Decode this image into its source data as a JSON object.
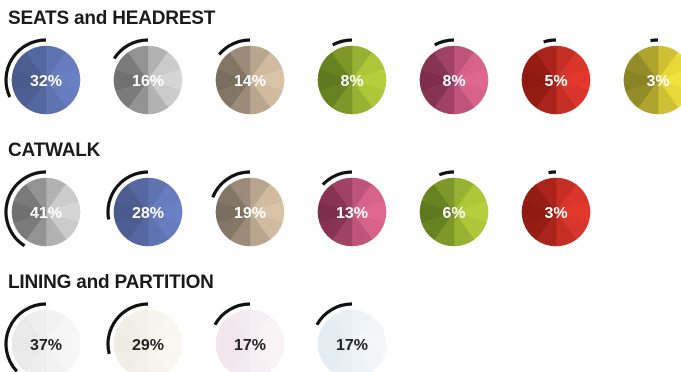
{
  "chart_data": [
    {
      "type": "pie",
      "title": "SEATS and HEADREST",
      "items": [
        {
          "label": "32%",
          "value": 32,
          "colors": [
            "#4a5a8e",
            "#6a80c4"
          ]
        },
        {
          "label": "16%",
          "value": 16,
          "colors": [
            "#707070",
            "#d5d5d5"
          ]
        },
        {
          "label": "14%",
          "value": 14,
          "colors": [
            "#7a6e5e",
            "#d9c3a8"
          ]
        },
        {
          "label": "8%",
          "value": 8,
          "colors": [
            "#5f7a1e",
            "#b5cf3c"
          ]
        },
        {
          "label": "8%",
          "value": 8,
          "colors": [
            "#7e2e4c",
            "#e06890"
          ]
        },
        {
          "label": "5%",
          "value": 5,
          "colors": [
            "#8e1a12",
            "#e2382c"
          ]
        },
        {
          "label": "3%",
          "value": 3,
          "colors": [
            "#8a8326",
            "#f2e23c"
          ]
        }
      ]
    },
    {
      "type": "pie",
      "title": "CATWALK",
      "items": [
        {
          "label": "41%",
          "value": 41,
          "colors": [
            "#707070",
            "#d5d5d5"
          ]
        },
        {
          "label": "28%",
          "value": 28,
          "colors": [
            "#4a5a8e",
            "#6a80c4"
          ]
        },
        {
          "label": "19%",
          "value": 19,
          "colors": [
            "#7a6e5e",
            "#d9c3a8"
          ]
        },
        {
          "label": "13%",
          "value": 13,
          "colors": [
            "#7e2e4c",
            "#e06890"
          ]
        },
        {
          "label": "6%",
          "value": 6,
          "colors": [
            "#5f7a1e",
            "#b5cf3c"
          ]
        },
        {
          "label": "3%",
          "value": 3,
          "colors": [
            "#8e1a12",
            "#e2382c"
          ]
        }
      ]
    },
    {
      "type": "pie",
      "title": "LINING and PARTITION",
      "items": [
        {
          "label": "37%",
          "value": 37,
          "colors": [
            "#e9e9e9",
            "#f7f7f7"
          ]
        },
        {
          "label": "29%",
          "value": 29,
          "colors": [
            "#efece4",
            "#faf8f2"
          ]
        },
        {
          "label": "17%",
          "value": 17,
          "colors": [
            "#f1e6ec",
            "#faf4f7"
          ]
        },
        {
          "label": "17%",
          "value": 17,
          "colors": [
            "#e4ebf1",
            "#f3f7fa"
          ]
        }
      ]
    }
  ]
}
